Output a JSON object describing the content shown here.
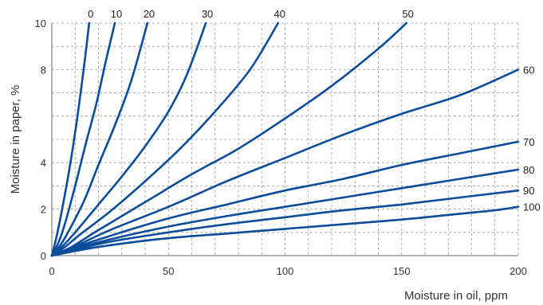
{
  "chart_data": {
    "type": "line",
    "title": "",
    "xlabel": "Moisture in oil, ppm",
    "ylabel": "Moisture in paper, %",
    "xlim": [
      0,
      200
    ],
    "ylim": [
      0,
      10
    ],
    "x_ticks": [
      0,
      50,
      100,
      150,
      200
    ],
    "y_ticks": [
      0,
      2,
      4,
      8,
      10
    ],
    "x_tick_labels": [
      "0",
      "50",
      "100",
      "150",
      "200"
    ],
    "y_tick_labels": [
      "0",
      "2",
      "4",
      "8",
      "10"
    ],
    "grid": true,
    "line_color": "#0b4c9c",
    "series": [
      {
        "label": "0",
        "points": [
          [
            0,
            0
          ],
          [
            2,
            0.8
          ],
          [
            5,
            2.3
          ],
          [
            8,
            4
          ],
          [
            11,
            6
          ],
          [
            14,
            8.3
          ],
          [
            16,
            10
          ]
        ]
      },
      {
        "label": "10",
        "points": [
          [
            0,
            0
          ],
          [
            3,
            0.6
          ],
          [
            6,
            1.5
          ],
          [
            10,
            3
          ],
          [
            14,
            4.6
          ],
          [
            19,
            6.5
          ],
          [
            23,
            8.3
          ],
          [
            27,
            10
          ]
        ]
      },
      {
        "label": "20",
        "points": [
          [
            0,
            0
          ],
          [
            4,
            0.5
          ],
          [
            8,
            1.2
          ],
          [
            14,
            2.4
          ],
          [
            20,
            3.9
          ],
          [
            27,
            5.6
          ],
          [
            34,
            7.5
          ],
          [
            41,
            10
          ]
        ]
      },
      {
        "label": "30",
        "points": [
          [
            0,
            0
          ],
          [
            5,
            0.45
          ],
          [
            10,
            1
          ],
          [
            20,
            2.2
          ],
          [
            30,
            3.4
          ],
          [
            40,
            4.7
          ],
          [
            50,
            6.2
          ],
          [
            58,
            7.8
          ],
          [
            66,
            10
          ]
        ]
      },
      {
        "label": "40",
        "points": [
          [
            0,
            0
          ],
          [
            6,
            0.4
          ],
          [
            12,
            0.9
          ],
          [
            25,
            1.9
          ],
          [
            40,
            3.2
          ],
          [
            55,
            4.6
          ],
          [
            70,
            6.2
          ],
          [
            85,
            8
          ],
          [
            97,
            10
          ]
        ]
      },
      {
        "label": "50",
        "points": [
          [
            0,
            0
          ],
          [
            8,
            0.35
          ],
          [
            20,
            1.1
          ],
          [
            40,
            2.3
          ],
          [
            60,
            3.5
          ],
          [
            80,
            4.6
          ],
          [
            100,
            5.9
          ],
          [
            120,
            7.3
          ],
          [
            140,
            8.9
          ],
          [
            152,
            10
          ]
        ]
      },
      {
        "label": "60",
        "points": [
          [
            0,
            0
          ],
          [
            10,
            0.4
          ],
          [
            25,
            1.1
          ],
          [
            50,
            2.1
          ],
          [
            75,
            3.2
          ],
          [
            100,
            4.2
          ],
          [
            125,
            5.2
          ],
          [
            150,
            6.1
          ],
          [
            175,
            6.9
          ],
          [
            200,
            8
          ]
        ]
      },
      {
        "label": "70",
        "points": [
          [
            0,
            0
          ],
          [
            10,
            0.35
          ],
          [
            25,
            0.85
          ],
          [
            50,
            1.6
          ],
          [
            75,
            2.2
          ],
          [
            100,
            2.8
          ],
          [
            125,
            3.3
          ],
          [
            150,
            3.9
          ],
          [
            175,
            4.4
          ],
          [
            200,
            4.9
          ]
        ]
      },
      {
        "label": "80",
        "points": [
          [
            0,
            0
          ],
          [
            10,
            0.3
          ],
          [
            25,
            0.7
          ],
          [
            50,
            1.25
          ],
          [
            75,
            1.7
          ],
          [
            100,
            2.1
          ],
          [
            125,
            2.5
          ],
          [
            150,
            2.9
          ],
          [
            175,
            3.3
          ],
          [
            200,
            3.7
          ]
        ]
      },
      {
        "label": "90",
        "points": [
          [
            0,
            0
          ],
          [
            10,
            0.25
          ],
          [
            25,
            0.6
          ],
          [
            50,
            1.0
          ],
          [
            75,
            1.35
          ],
          [
            100,
            1.65
          ],
          [
            125,
            1.95
          ],
          [
            150,
            2.2
          ],
          [
            175,
            2.5
          ],
          [
            200,
            2.8
          ]
        ]
      },
      {
        "label": "100",
        "points": [
          [
            0,
            0
          ],
          [
            10,
            0.2
          ],
          [
            25,
            0.45
          ],
          [
            50,
            0.75
          ],
          [
            75,
            0.95
          ],
          [
            100,
            1.15
          ],
          [
            125,
            1.35
          ],
          [
            150,
            1.55
          ],
          [
            175,
            1.8
          ],
          [
            190,
            1.95
          ],
          [
            200,
            2.1
          ]
        ]
      }
    ]
  }
}
